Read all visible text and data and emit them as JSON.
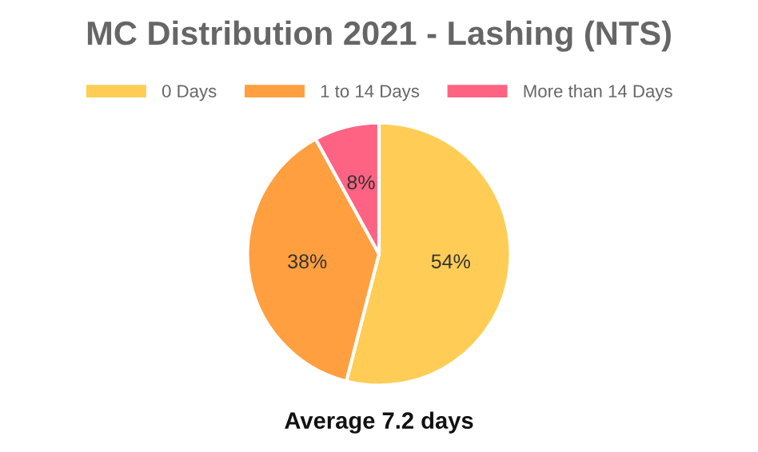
{
  "chart_data": {
    "type": "pie",
    "title": "MC Distribution 2021 - Lashing (NTS)",
    "categories": [
      "0 Days",
      "1 to 14 Days",
      "More than 14 Days"
    ],
    "values": [
      54,
      38,
      8
    ],
    "value_labels": [
      "54%",
      "38%",
      "8%"
    ],
    "colors": [
      "#ffcd56",
      "#ff9f40",
      "#ff6384"
    ],
    "legend": "top",
    "annotations": [
      "Average 7.2 days"
    ]
  }
}
